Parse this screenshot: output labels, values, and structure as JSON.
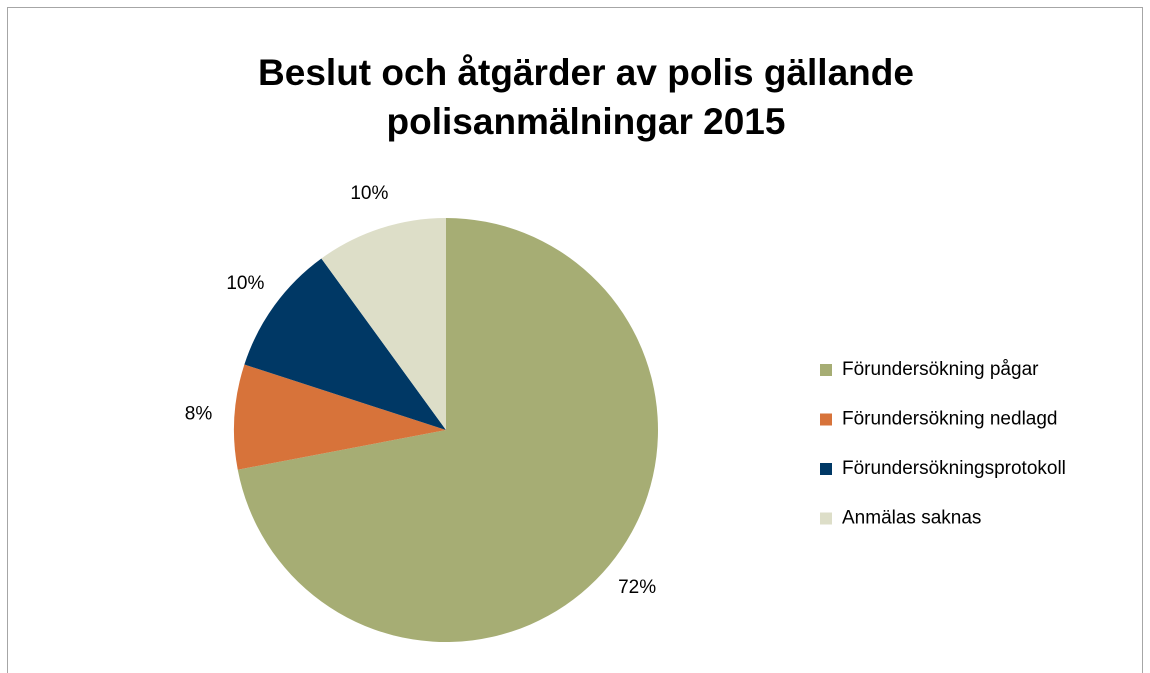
{
  "chart_data": {
    "type": "pie",
    "title": [
      "Beslut och åtgärder av polis gällande",
      "polisanmälningar 2015"
    ],
    "categories": [
      "Förundersökning pågar",
      "Förundersökning nedlagd",
      "Förundersökningsprotokoll",
      "Anmälas saknas"
    ],
    "values": [
      72,
      8,
      10,
      10
    ],
    "value_labels": [
      "72%",
      "8%",
      "10%",
      "10%"
    ],
    "colors": [
      "#a6ad74",
      "#d7733a",
      "#003865",
      "#dddec8"
    ],
    "legend": "right"
  }
}
